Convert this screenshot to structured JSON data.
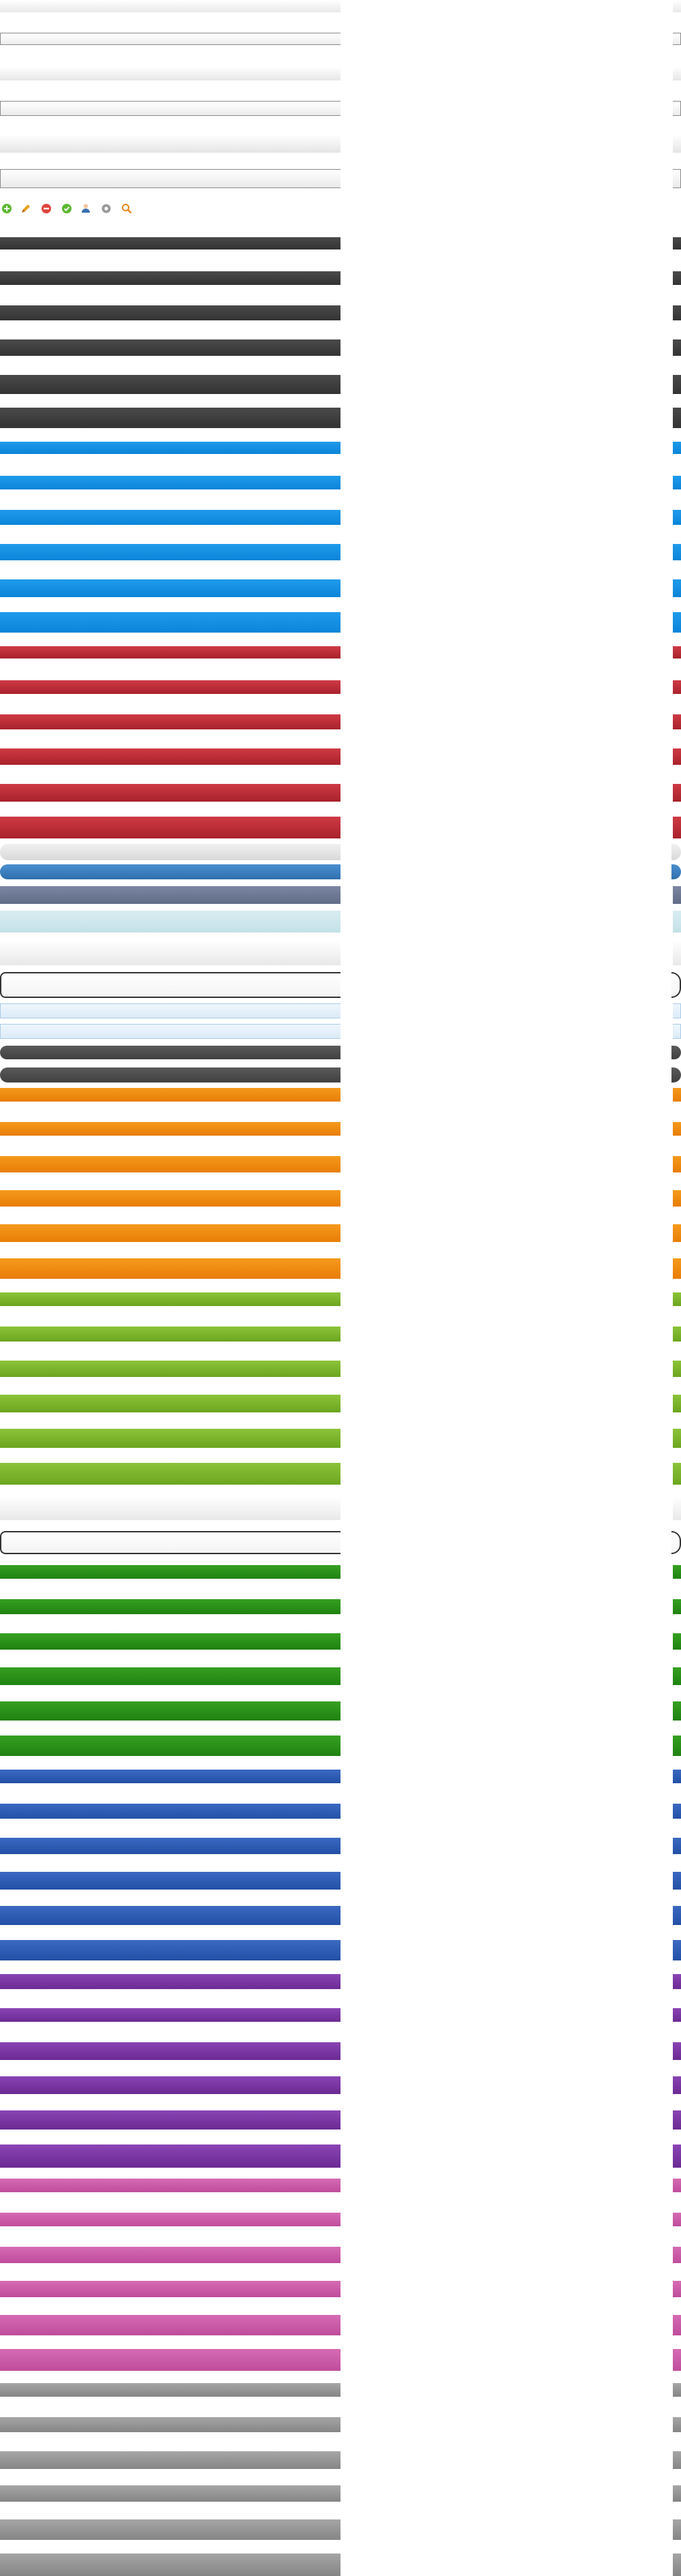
{
  "sprite": {
    "background": "#ffffff",
    "button_strips": [
      {
        "group": "white-gradient",
        "colors": [
          "#ffffff",
          "#e9e9e9"
        ],
        "border": "none"
      },
      {
        "group": "white-outlined",
        "colors": [
          "#ffffff",
          "#ededed"
        ],
        "border": "#8a8a8a"
      },
      {
        "group": "white-gradient",
        "colors": [
          "#ffffff",
          "#e6e6e6"
        ],
        "border": "none"
      },
      {
        "group": "white-outlined",
        "colors": [
          "#ffffff",
          "#ececec"
        ],
        "border": "#8a8a8a"
      },
      {
        "group": "white-gradient",
        "colors": [
          "#ffffff",
          "#e4e4e4"
        ],
        "border": "none"
      },
      {
        "group": "white-outlined",
        "colors": [
          "#ffffff",
          "#eaeaea"
        ],
        "border": "#8a8a8a"
      },
      {
        "group": "dark-gray",
        "colors": [
          "#4a4a4a",
          "#333333"
        ],
        "border": "none"
      },
      {
        "group": "dark-gray",
        "colors": [
          "#4a4a4a",
          "#333333"
        ],
        "border": "none"
      },
      {
        "group": "dark-gray",
        "colors": [
          "#4a4a4a",
          "#333333"
        ],
        "border": "none"
      },
      {
        "group": "dark-gray",
        "colors": [
          "#4a4a4a",
          "#333333"
        ],
        "border": "none"
      },
      {
        "group": "dark-gray",
        "colors": [
          "#4a4a4a",
          "#333333"
        ],
        "border": "none"
      },
      {
        "group": "dark-gray",
        "colors": [
          "#4a4a4a",
          "#333333"
        ],
        "border": "none"
      },
      {
        "group": "blue",
        "colors": [
          "#1f9bec",
          "#0a84d8"
        ],
        "border": "none"
      },
      {
        "group": "blue",
        "colors": [
          "#1f9bec",
          "#0a84d8"
        ],
        "border": "none"
      },
      {
        "group": "blue",
        "colors": [
          "#1f9bec",
          "#0a84d8"
        ],
        "border": "none"
      },
      {
        "group": "blue",
        "colors": [
          "#1f9bec",
          "#0a84d8"
        ],
        "border": "none"
      },
      {
        "group": "blue",
        "colors": [
          "#1f9bec",
          "#0a84d8"
        ],
        "border": "none"
      },
      {
        "group": "blue",
        "colors": [
          "#1f9bec",
          "#0a84d8"
        ],
        "border": "none"
      },
      {
        "group": "red",
        "colors": [
          "#cf3a44",
          "#a8222c"
        ],
        "border": "none"
      },
      {
        "group": "red",
        "colors": [
          "#cf3a44",
          "#a8222c"
        ],
        "border": "none"
      },
      {
        "group": "red",
        "colors": [
          "#cf3a44",
          "#a8222c"
        ],
        "border": "none"
      },
      {
        "group": "red",
        "colors": [
          "#cf3a44",
          "#a8222c"
        ],
        "border": "none"
      },
      {
        "group": "red",
        "colors": [
          "#cf3a44",
          "#a8222c"
        ],
        "border": "none"
      },
      {
        "group": "red",
        "colors": [
          "#cf3a44",
          "#a8222c"
        ],
        "border": "none"
      },
      {
        "group": "light-gray-pill",
        "colors": [
          "#f0f0f0",
          "#d9d9d9"
        ],
        "border": "none"
      },
      {
        "group": "blue-pill",
        "colors": [
          "#4a8fd0",
          "#2f6fae"
        ],
        "border": "none"
      },
      {
        "group": "slate",
        "colors": [
          "#7c87a3",
          "#606b86"
        ],
        "border": "none"
      },
      {
        "group": "light-cyan",
        "colors": [
          "#d8edf1",
          "#c3e1e8"
        ],
        "border": "none"
      },
      {
        "group": "white-gradient",
        "colors": [
          "#ffffff",
          "#e8e8e8"
        ],
        "border": "none"
      },
      {
        "group": "white-outlined-thick",
        "colors": [
          "#ffffff",
          "#f4f4f4"
        ],
        "border": "#333333"
      },
      {
        "group": "pale-blue",
        "colors": [
          "#eef6fd",
          "#dcebf8"
        ],
        "border": "#a9cbe8"
      },
      {
        "group": "pale-blue",
        "colors": [
          "#eef6fd",
          "#dcebf8"
        ],
        "border": "#a9cbe8"
      },
      {
        "group": "charcoal-pill",
        "colors": [
          "#5a5a5a",
          "#404040"
        ],
        "border": "none"
      },
      {
        "group": "charcoal-pill",
        "colors": [
          "#5a5a5a",
          "#404040"
        ],
        "border": "none"
      },
      {
        "group": "orange",
        "colors": [
          "#f59a1c",
          "#e87d07"
        ],
        "border": "none"
      },
      {
        "group": "orange",
        "colors": [
          "#f59a1c",
          "#e87d07"
        ],
        "border": "none"
      },
      {
        "group": "orange",
        "colors": [
          "#f59a1c",
          "#e87d07"
        ],
        "border": "none"
      },
      {
        "group": "orange",
        "colors": [
          "#f59a1c",
          "#e87d07"
        ],
        "border": "none"
      },
      {
        "group": "orange",
        "colors": [
          "#f59a1c",
          "#e87d07"
        ],
        "border": "none"
      },
      {
        "group": "orange",
        "colors": [
          "#f59a1c",
          "#e87d07"
        ],
        "border": "none"
      },
      {
        "group": "lime-green",
        "colors": [
          "#8cc43a",
          "#6ba51f"
        ],
        "border": "none"
      },
      {
        "group": "lime-green",
        "colors": [
          "#8cc43a",
          "#6ba51f"
        ],
        "border": "none"
      },
      {
        "group": "lime-green",
        "colors": [
          "#8cc43a",
          "#6ba51f"
        ],
        "border": "none"
      },
      {
        "group": "lime-green",
        "colors": [
          "#8cc43a",
          "#6ba51f"
        ],
        "border": "none"
      },
      {
        "group": "lime-green",
        "colors": [
          "#8cc43a",
          "#6ba51f"
        ],
        "border": "none"
      },
      {
        "group": "lime-green",
        "colors": [
          "#8cc43a",
          "#6ba51f"
        ],
        "border": "none"
      },
      {
        "group": "white-gradient",
        "colors": [
          "#ffffff",
          "#e8e8e8"
        ],
        "border": "none"
      },
      {
        "group": "white-outlined-thick",
        "colors": [
          "#ffffff",
          "#f4f4f4"
        ],
        "border": "#333333"
      },
      {
        "group": "green",
        "colors": [
          "#36a022",
          "#1f8210"
        ],
        "border": "none"
      },
      {
        "group": "green",
        "colors": [
          "#36a022",
          "#1f8210"
        ],
        "border": "none"
      },
      {
        "group": "green",
        "colors": [
          "#36a022",
          "#1f8210"
        ],
        "border": "none"
      },
      {
        "group": "green",
        "colors": [
          "#36a022",
          "#1f8210"
        ],
        "border": "none"
      },
      {
        "group": "green",
        "colors": [
          "#36a022",
          "#1f8210"
        ],
        "border": "none"
      },
      {
        "group": "green",
        "colors": [
          "#36a022",
          "#1f8210"
        ],
        "border": "none"
      },
      {
        "group": "royal-blue",
        "colors": [
          "#3b69c2",
          "#2350a6"
        ],
        "border": "none"
      },
      {
        "group": "royal-blue",
        "colors": [
          "#3b69c2",
          "#2350a6"
        ],
        "border": "none"
      },
      {
        "group": "royal-blue",
        "colors": [
          "#3b69c2",
          "#2350a6"
        ],
        "border": "none"
      },
      {
        "group": "royal-blue",
        "colors": [
          "#3b69c2",
          "#2350a6"
        ],
        "border": "none"
      },
      {
        "group": "royal-blue",
        "colors": [
          "#3b69c2",
          "#2350a6"
        ],
        "border": "none"
      },
      {
        "group": "royal-blue",
        "colors": [
          "#3b69c2",
          "#2350a6"
        ],
        "border": "none"
      },
      {
        "group": "purple",
        "colors": [
          "#8a44b4",
          "#6b2a93"
        ],
        "border": "none"
      },
      {
        "group": "purple",
        "colors": [
          "#8a44b4",
          "#6b2a93"
        ],
        "border": "none"
      },
      {
        "group": "purple",
        "colors": [
          "#8a44b4",
          "#6b2a93"
        ],
        "border": "none"
      },
      {
        "group": "purple",
        "colors": [
          "#8a44b4",
          "#6b2a93"
        ],
        "border": "none"
      },
      {
        "group": "purple",
        "colors": [
          "#8a44b4",
          "#6b2a93"
        ],
        "border": "none"
      },
      {
        "group": "purple",
        "colors": [
          "#8a44b4",
          "#6b2a93"
        ],
        "border": "none"
      },
      {
        "group": "pink",
        "colors": [
          "#d66bb4",
          "#bf4c9c"
        ],
        "border": "none"
      },
      {
        "group": "pink",
        "colors": [
          "#d66bb4",
          "#bf4c9c"
        ],
        "border": "none"
      },
      {
        "group": "pink",
        "colors": [
          "#d66bb4",
          "#bf4c9c"
        ],
        "border": "none"
      },
      {
        "group": "pink",
        "colors": [
          "#d66bb4",
          "#bf4c9c"
        ],
        "border": "none"
      },
      {
        "group": "pink",
        "colors": [
          "#d66bb4",
          "#bf4c9c"
        ],
        "border": "none"
      },
      {
        "group": "pink",
        "colors": [
          "#d66bb4",
          "#bf4c9c"
        ],
        "border": "none"
      },
      {
        "group": "gray",
        "colors": [
          "#a6a6a6",
          "#858585"
        ],
        "border": "none"
      },
      {
        "group": "gray",
        "colors": [
          "#a6a6a6",
          "#858585"
        ],
        "border": "none"
      },
      {
        "group": "gray",
        "colors": [
          "#a6a6a6",
          "#858585"
        ],
        "border": "none"
      },
      {
        "group": "gray",
        "colors": [
          "#a6a6a6",
          "#858585"
        ],
        "border": "none"
      },
      {
        "group": "gray",
        "colors": [
          "#a6a6a6",
          "#858585"
        ],
        "border": "none"
      },
      {
        "group": "gray",
        "colors": [
          "#a6a6a6",
          "#858585"
        ],
        "border": "none"
      }
    ],
    "icons": [
      {
        "name": "add-icon",
        "color": "#5cb82e"
      },
      {
        "name": "edit-pencil-icon",
        "color": "#e8a21a"
      },
      {
        "name": "delete-icon",
        "color": "#e0443c"
      },
      {
        "name": "accept-check-icon",
        "color": "#5cb82e"
      },
      {
        "name": "user-icon",
        "color": "#3a6fb0"
      },
      {
        "name": "settings-gear-icon",
        "color": "#9a9a9a"
      },
      {
        "name": "search-magnifier-icon",
        "color": "#e8891a"
      }
    ]
  }
}
